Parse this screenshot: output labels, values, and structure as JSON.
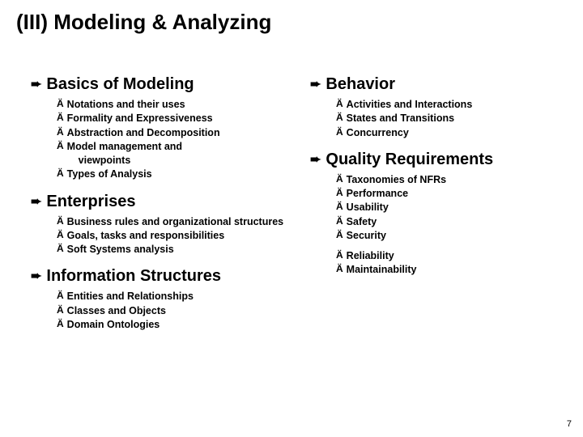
{
  "title": "(III) Modeling & Analyzing",
  "bullet_main": "➨",
  "bullet_sub": "Ä",
  "colors": {
    "text": "#000000",
    "background": "#ffffff"
  },
  "left_sections": [
    {
      "heading": "Basics of Modeling",
      "items": [
        "Notations and their uses",
        "Formality and Expressiveness",
        "Abstraction and Decomposition",
        "Model management and",
        {
          "text": "viewpoints",
          "indent": true,
          "no_bullet": true
        },
        "Types of Analysis"
      ]
    },
    {
      "heading": "Enterprises",
      "items": [
        "Business rules and organizational structures",
        "Goals, tasks and responsibilities",
        "Soft Systems analysis"
      ]
    },
    {
      "heading": "Information Structures",
      "items": [
        "Entities and Relationships",
        "Classes and Objects",
        "Domain Ontologies"
      ]
    }
  ],
  "right_sections": [
    {
      "heading": "Behavior",
      "items": [
        "Activities and Interactions",
        "States and Transitions",
        "Concurrency"
      ]
    },
    {
      "heading": "Quality Requirements",
      "items": [
        "Taxonomies of NFRs",
        "Performance",
        "Usability",
        "Safety",
        "Security",
        {
          "spacer": true
        },
        "Reliability",
        "Maintainability"
      ]
    }
  ],
  "page_number": "7"
}
